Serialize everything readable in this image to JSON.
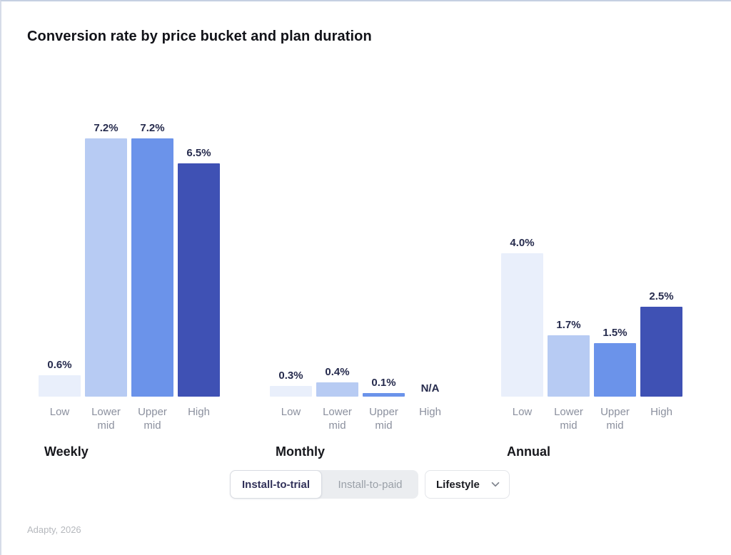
{
  "header": {
    "title": "Conversion rate by price bucket and plan duration"
  },
  "chart_data": {
    "type": "bar",
    "title": "Conversion rate by price bucket and plan duration",
    "unit": "%",
    "categories": [
      "Low",
      "Lower mid",
      "Upper mid",
      "High"
    ],
    "groups": [
      {
        "label": "Weekly",
        "values": [
          0.6,
          7.2,
          7.2,
          6.5
        ],
        "value_labels": [
          "0.6%",
          "7.2%",
          "7.2%",
          "6.5%"
        ]
      },
      {
        "label": "Monthly",
        "values": [
          0.3,
          0.4,
          0.1,
          null
        ],
        "value_labels": [
          "0.3%",
          "0.4%",
          "0.1%",
          "N/A"
        ]
      },
      {
        "label": "Annual",
        "values": [
          4.0,
          1.7,
          1.5,
          2.5
        ],
        "value_labels": [
          "4.0%",
          "1.7%",
          "1.5%",
          "2.5%"
        ]
      }
    ],
    "bar_colors": [
      "#e9effb",
      "#b7cbf3",
      "#6b93ea",
      "#3f51b4"
    ],
    "value_label_color": "#262b4d",
    "category_label_color": "#8b909e",
    "ylim": [
      0,
      7.7
    ],
    "grid": false,
    "legend": false,
    "axes_visible": false
  },
  "controls": {
    "segmented": {
      "options": [
        {
          "label": "Install-to-trial",
          "active": true
        },
        {
          "label": "Install-to-paid",
          "active": false
        }
      ]
    },
    "dropdown": {
      "value": "Lifestyle",
      "icon": "chevron-down-icon"
    }
  },
  "footer": {
    "source": "Adapty, 2026"
  }
}
